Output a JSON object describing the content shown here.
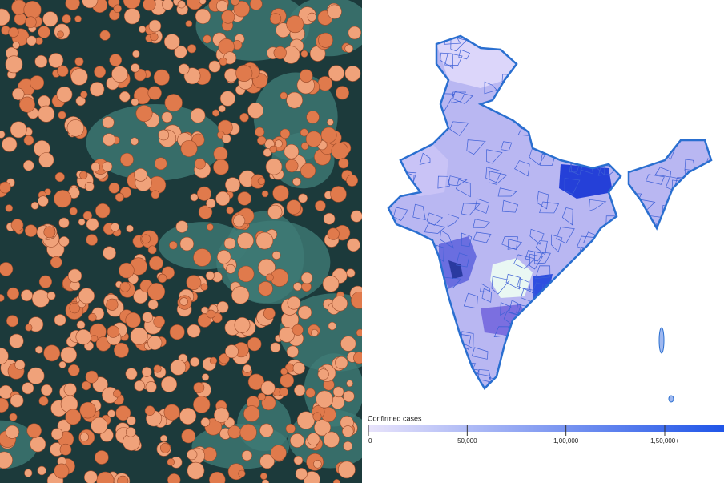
{
  "legend": {
    "title": "Confirmed cases",
    "range": [
      0,
      180000
    ],
    "colors": [
      "#e8e3fb",
      "#1f55e8"
    ],
    "ticks": [
      0,
      {
        "value": 50000,
        "label": "50,000"
      },
      {
        "value": 100000,
        "label": "1,00,000"
      },
      {
        "value": 150000,
        "label": "1,50,000+"
      }
    ]
  }
}
